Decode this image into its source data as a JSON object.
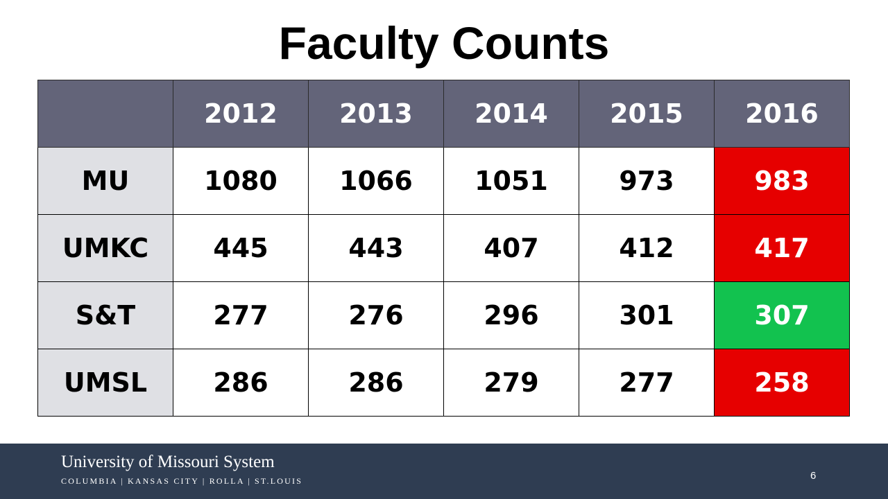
{
  "slide": {
    "title": "Faculty Counts",
    "page_number": "6"
  },
  "table": {
    "headers": [
      "",
      "2012",
      "2013",
      "2014",
      "2015",
      "2016"
    ],
    "rows": [
      {
        "label": "MU",
        "values": [
          "1080",
          "1066",
          "1051",
          "973",
          "983"
        ],
        "highlight": "#e60000"
      },
      {
        "label": "UMKC",
        "values": [
          "445",
          "443",
          "407",
          "412",
          "417"
        ],
        "highlight": "#e60000"
      },
      {
        "label": "S&T",
        "values": [
          "277",
          "276",
          "296",
          "301",
          "307"
        ],
        "highlight": "#12c24f"
      },
      {
        "label": "UMSL",
        "values": [
          "286",
          "286",
          "279",
          "277",
          "258"
        ],
        "highlight": "#e60000"
      }
    ]
  },
  "footer": {
    "brand": "University of Missouri System",
    "campuses": "COLUMBIA | KANSAS CITY | ROLLA | ST.LOUIS"
  },
  "colors": {
    "header_bg": "#636479",
    "row_label_bg": "#dfe0e4",
    "footer_bg": "#2f3d52",
    "decrease": "#e60000",
    "increase": "#12c24f"
  }
}
